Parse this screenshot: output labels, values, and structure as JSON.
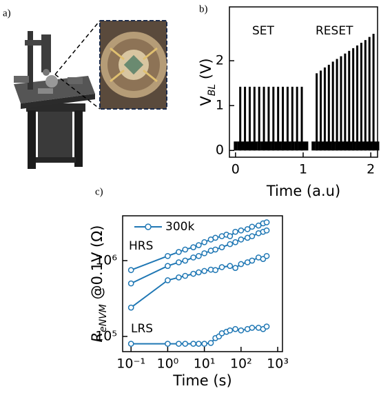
{
  "panel_labels": [
    "a)",
    "b)",
    "c)"
  ],
  "chart_data": [
    {
      "type": "bar",
      "ylabel": {
        "main": "V",
        "sub": "BL",
        "rest": " (V)"
      },
      "xlabel": "Time (a.u)",
      "annotations": [
        "SET",
        "RESET"
      ],
      "xlim": [
        -0.09,
        2.1
      ],
      "ylim": [
        -0.15,
        3.2
      ],
      "xticks": [
        0,
        1,
        2
      ],
      "yticks": [
        0,
        1,
        2
      ],
      "color": "#000000",
      "series": [
        {
          "x": [
            0.07,
            0.14,
            0.21,
            0.28,
            0.35,
            0.42,
            0.49,
            0.56,
            0.63,
            0.7,
            0.77,
            0.84,
            0.91,
            0.98,
            1.2,
            1.26,
            1.32,
            1.38,
            1.44,
            1.5,
            1.56,
            1.62,
            1.68,
            1.74,
            1.8,
            1.86,
            1.92,
            1.98,
            2.04
          ],
          "values": [
            1.42,
            1.42,
            1.42,
            1.42,
            1.42,
            1.42,
            1.42,
            1.42,
            1.42,
            1.42,
            1.42,
            1.42,
            1.42,
            1.42,
            1.72,
            1.78,
            1.85,
            1.91,
            1.98,
            2.04,
            2.1,
            2.16,
            2.22,
            2.28,
            2.34,
            2.4,
            2.46,
            2.53,
            2.6
          ]
        },
        {
          "x": [
            0,
            0.05,
            0.1,
            0.15,
            0.2,
            0.25,
            0.3,
            0.35,
            0.4,
            0.45,
            0.5,
            0.55,
            0.6,
            0.65,
            0.7,
            0.75,
            0.8,
            0.85,
            0.9,
            0.95,
            1.0,
            1.05,
            1.15,
            1.2,
            1.25,
            1.3,
            1.35,
            1.4,
            1.45,
            1.5,
            1.55,
            1.6,
            1.65,
            1.7,
            1.75,
            1.8,
            1.85,
            1.9,
            1.95,
            2.0,
            2.05,
            2.1
          ],
          "values": [
            0.2,
            0.2,
            0.2,
            0.2,
            0.2,
            0.2,
            0.2,
            0.2,
            0.2,
            0.2,
            0.2,
            0.2,
            0.2,
            0.2,
            0.2,
            0.2,
            0.2,
            0.2,
            0.2,
            0.2,
            0.2,
            0.2,
            0.2,
            0.2,
            0.2,
            0.2,
            0.2,
            0.2,
            0.2,
            0.2,
            0.2,
            0.2,
            0.2,
            0.2,
            0.2,
            0.2,
            0.2,
            0.2,
            0.2,
            0.2,
            0.2,
            0.2
          ]
        }
      ]
    },
    {
      "type": "line",
      "ylabel": {
        "main": "R",
        "sub": "eNVM",
        "rest": " @0.1V (Ω)"
      },
      "xlabel": "Time (s)",
      "annotations": [
        "HRS",
        "LRS"
      ],
      "log_x": true,
      "log_y": true,
      "xlim": [
        0.059,
        1350
      ],
      "ylim": [
        63000,
        3900000
      ],
      "xticks": [
        {
          "value": 0.1,
          "label": "10⁻¹"
        },
        {
          "value": 1,
          "label": "10⁰"
        },
        {
          "value": 10,
          "label": "10¹"
        },
        {
          "value": 100,
          "label": "10²"
        },
        {
          "value": 1000,
          "label": "10³"
        }
      ],
      "yticks": [
        {
          "value": 100000,
          "label": "10⁵"
        },
        {
          "value": 1000000,
          "label": "10⁶"
        }
      ],
      "series": [
        {
          "name": "300k",
          "color": "#1f77b4",
          "x": [
            0.1,
            1,
            2,
            3,
            5,
            7,
            10,
            15,
            20,
            30,
            40,
            50,
            70,
            100,
            150,
            200,
            300,
            400,
            500,
            null,
            0.1,
            1,
            2,
            3,
            5,
            7,
            10,
            15,
            20,
            30,
            50,
            70,
            100,
            150,
            200,
            300,
            400,
            500,
            null,
            0.1,
            1,
            2,
            3,
            5,
            7,
            10,
            15,
            20,
            30,
            50,
            70,
            100,
            150,
            200,
            300,
            400,
            500,
            null,
            0.1,
            1,
            2,
            3,
            5,
            7,
            10,
            15,
            20,
            25,
            30,
            40,
            50,
            70,
            100,
            150,
            200,
            300,
            400,
            500
          ],
          "values": [
            750000,
            1150000,
            1300000,
            1400000,
            1500000,
            1600000,
            1750000,
            1900000,
            2000000,
            2100000,
            2200000,
            2100000,
            2400000,
            2500000,
            2600000,
            2800000,
            2900000,
            3100000,
            3200000,
            null,
            500000,
            850000,
            950000,
            1000000,
            1100000,
            1150000,
            1250000,
            1350000,
            1400000,
            1500000,
            1650000,
            1750000,
            1900000,
            2000000,
            2100000,
            2300000,
            2400000,
            2500000,
            null,
            240000,
            550000,
            600000,
            630000,
            670000,
            700000,
            730000,
            760000,
            750000,
            820000,
            850000,
            800000,
            900000,
            950000,
            1000000,
            1100000,
            1050000,
            1150000,
            null,
            80000,
            80000,
            80000,
            80000,
            80000,
            80000,
            80000,
            82000,
            95000,
            100000,
            110000,
            115000,
            120000,
            125000,
            120000,
            125000,
            130000,
            130000,
            125000,
            135000
          ]
        }
      ]
    }
  ]
}
